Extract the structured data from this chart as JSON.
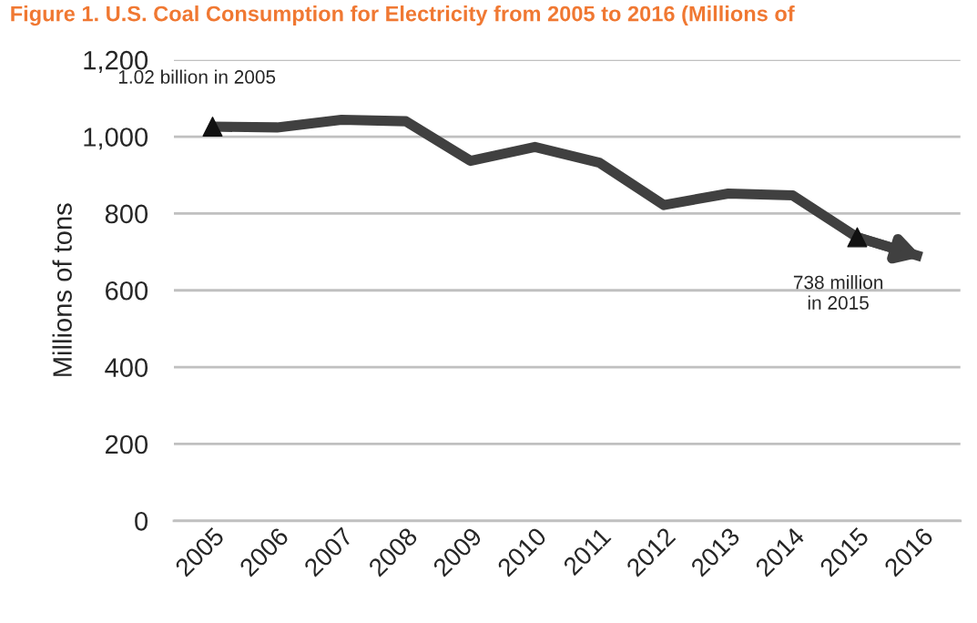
{
  "chart_data": {
    "type": "line",
    "title": "Figure 1. U.S. Coal Consumption for Electricity from 2005 to 2016 (Millions of",
    "ylabel": "Millions of tons",
    "categories": [
      "2005",
      "2006",
      "2007",
      "2008",
      "2009",
      "2010",
      "2011",
      "2012",
      "2013",
      "2014",
      "2015",
      "2016"
    ],
    "series": [
      {
        "color": "#404040",
        "values": [
          1026,
          1024,
          1044,
          1040,
          937,
          973,
          932,
          822,
          852,
          847,
          738,
          687
        ]
      }
    ],
    "ylim": [
      0,
      1200
    ],
    "yticks": [
      0,
      200,
      400,
      600,
      800,
      {
        "value": 1000,
        "label": "1,000"
      },
      {
        "value": 1200,
        "label": "1,200"
      }
    ],
    "grid": "y",
    "legend": false,
    "annotations": [
      {
        "text": "1.02 billion in 2005",
        "x": "2005",
        "y": 1026
      },
      {
        "text": "738 million\nin 2015",
        "x": "2015",
        "y": 738
      }
    ]
  }
}
